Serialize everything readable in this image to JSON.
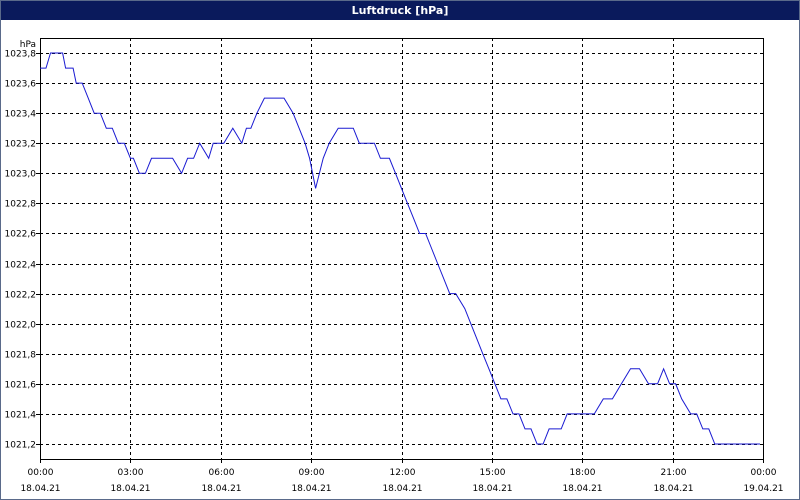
{
  "window": {
    "title": "Luftdruck [hPa]"
  },
  "colors": {
    "line": "#1a1ad2",
    "titlebar": "#0a1a5c",
    "grid": "#000000"
  },
  "chart_data": {
    "type": "line",
    "title": "Luftdruck [hPa]",
    "ylabel": "hPa",
    "xlabel": "",
    "ylim": [
      1021.1,
      1023.9
    ],
    "xlim_hours": [
      0,
      24
    ],
    "grid": true,
    "legend": "none",
    "y_ticks": [
      "1021,2",
      "1021,4",
      "1021,6",
      "1021,8",
      "1022,0",
      "1022,2",
      "1022,4",
      "1022,6",
      "1022,8",
      "1023,0",
      "1023,2",
      "1023,4",
      "1023,6",
      "1023,8"
    ],
    "x_ticks": [
      {
        "time": "00:00",
        "date": "18.04.21"
      },
      {
        "time": "03:00",
        "date": "18.04.21"
      },
      {
        "time": "06:00",
        "date": "18.04.21"
      },
      {
        "time": "09:00",
        "date": "18.04.21"
      },
      {
        "time": "12:00",
        "date": "18.04.21"
      },
      {
        "time": "15:00",
        "date": "18.04.21"
      },
      {
        "time": "18:00",
        "date": "18.04.21"
      },
      {
        "time": "21:00",
        "date": "18.04.21"
      },
      {
        "time": "00:00",
        "date": "19.04.21"
      }
    ],
    "series": [
      {
        "x_hours": [
          0,
          0.2,
          0.35,
          0.6,
          0.75,
          0.85,
          1.1,
          1.2,
          1.4,
          1.6,
          1.8,
          2.0,
          2.2,
          2.4,
          2.6,
          2.8,
          3.0,
          3.1,
          3.3,
          3.5,
          3.7,
          3.9,
          4.1,
          4.4,
          4.7,
          4.9,
          5.1,
          5.3,
          5.6,
          5.75,
          5.9,
          6.1,
          6.4,
          6.7,
          6.85,
          7.0,
          7.2,
          7.45,
          7.7,
          8.1,
          8.4,
          8.6,
          8.8,
          8.95,
          9.15,
          9.4,
          9.6,
          9.9,
          10.1,
          10.4,
          10.6,
          10.85,
          11.1,
          11.3,
          11.6,
          11.8,
          12.0,
          12.2,
          12.4,
          12.6,
          12.8,
          13.0,
          13.2,
          13.4,
          13.6,
          13.8,
          14.1,
          14.3,
          14.5,
          14.7,
          14.9,
          15.1,
          15.3,
          15.5,
          15.7,
          15.9,
          16.1,
          16.3,
          16.5,
          16.7,
          16.9,
          17.1,
          17.3,
          17.5,
          17.7,
          17.9,
          18.1,
          18.4,
          18.7,
          19.0,
          19.3,
          19.6,
          19.9,
          20.2,
          20.5,
          20.7,
          20.9,
          21.1,
          21.3,
          21.6,
          21.8,
          22.0,
          22.2,
          22.4,
          22.6,
          22.8,
          23.0,
          23.2,
          23.4,
          23.6,
          23.9
        ],
        "y": [
          1023.7,
          1023.7,
          1023.8,
          1023.8,
          1023.8,
          1023.7,
          1023.7,
          1023.6,
          1023.6,
          1023.5,
          1023.4,
          1023.4,
          1023.3,
          1023.3,
          1023.2,
          1023.2,
          1023.1,
          1023.1,
          1023.0,
          1023.0,
          1023.1,
          1023.1,
          1023.1,
          1023.1,
          1023.0,
          1023.1,
          1023.1,
          1023.2,
          1023.1,
          1023.2,
          1023.2,
          1023.2,
          1023.3,
          1023.2,
          1023.3,
          1023.3,
          1023.4,
          1023.5,
          1023.5,
          1023.5,
          1023.4,
          1023.3,
          1023.2,
          1023.1,
          1022.9,
          1023.1,
          1023.2,
          1023.3,
          1023.3,
          1023.3,
          1023.2,
          1023.2,
          1023.2,
          1023.1,
          1023.1,
          1023.0,
          1022.9,
          1022.8,
          1022.7,
          1022.6,
          1022.6,
          1022.5,
          1022.4,
          1022.3,
          1022.2,
          1022.2,
          1022.1,
          1022.0,
          1021.9,
          1021.8,
          1021.7,
          1021.6,
          1021.5,
          1021.5,
          1021.4,
          1021.4,
          1021.3,
          1021.3,
          1021.2,
          1021.2,
          1021.3,
          1021.3,
          1021.3,
          1021.4,
          1021.4,
          1021.4,
          1021.4,
          1021.4,
          1021.5,
          1021.5,
          1021.6,
          1021.7,
          1021.7,
          1021.6,
          1021.6,
          1021.7,
          1021.6,
          1021.6,
          1021.5,
          1021.4,
          1021.4,
          1021.3,
          1021.3,
          1021.2,
          1021.2,
          1021.2,
          1021.2,
          1021.2,
          1021.2,
          1021.2,
          1021.2
        ]
      }
    ]
  }
}
